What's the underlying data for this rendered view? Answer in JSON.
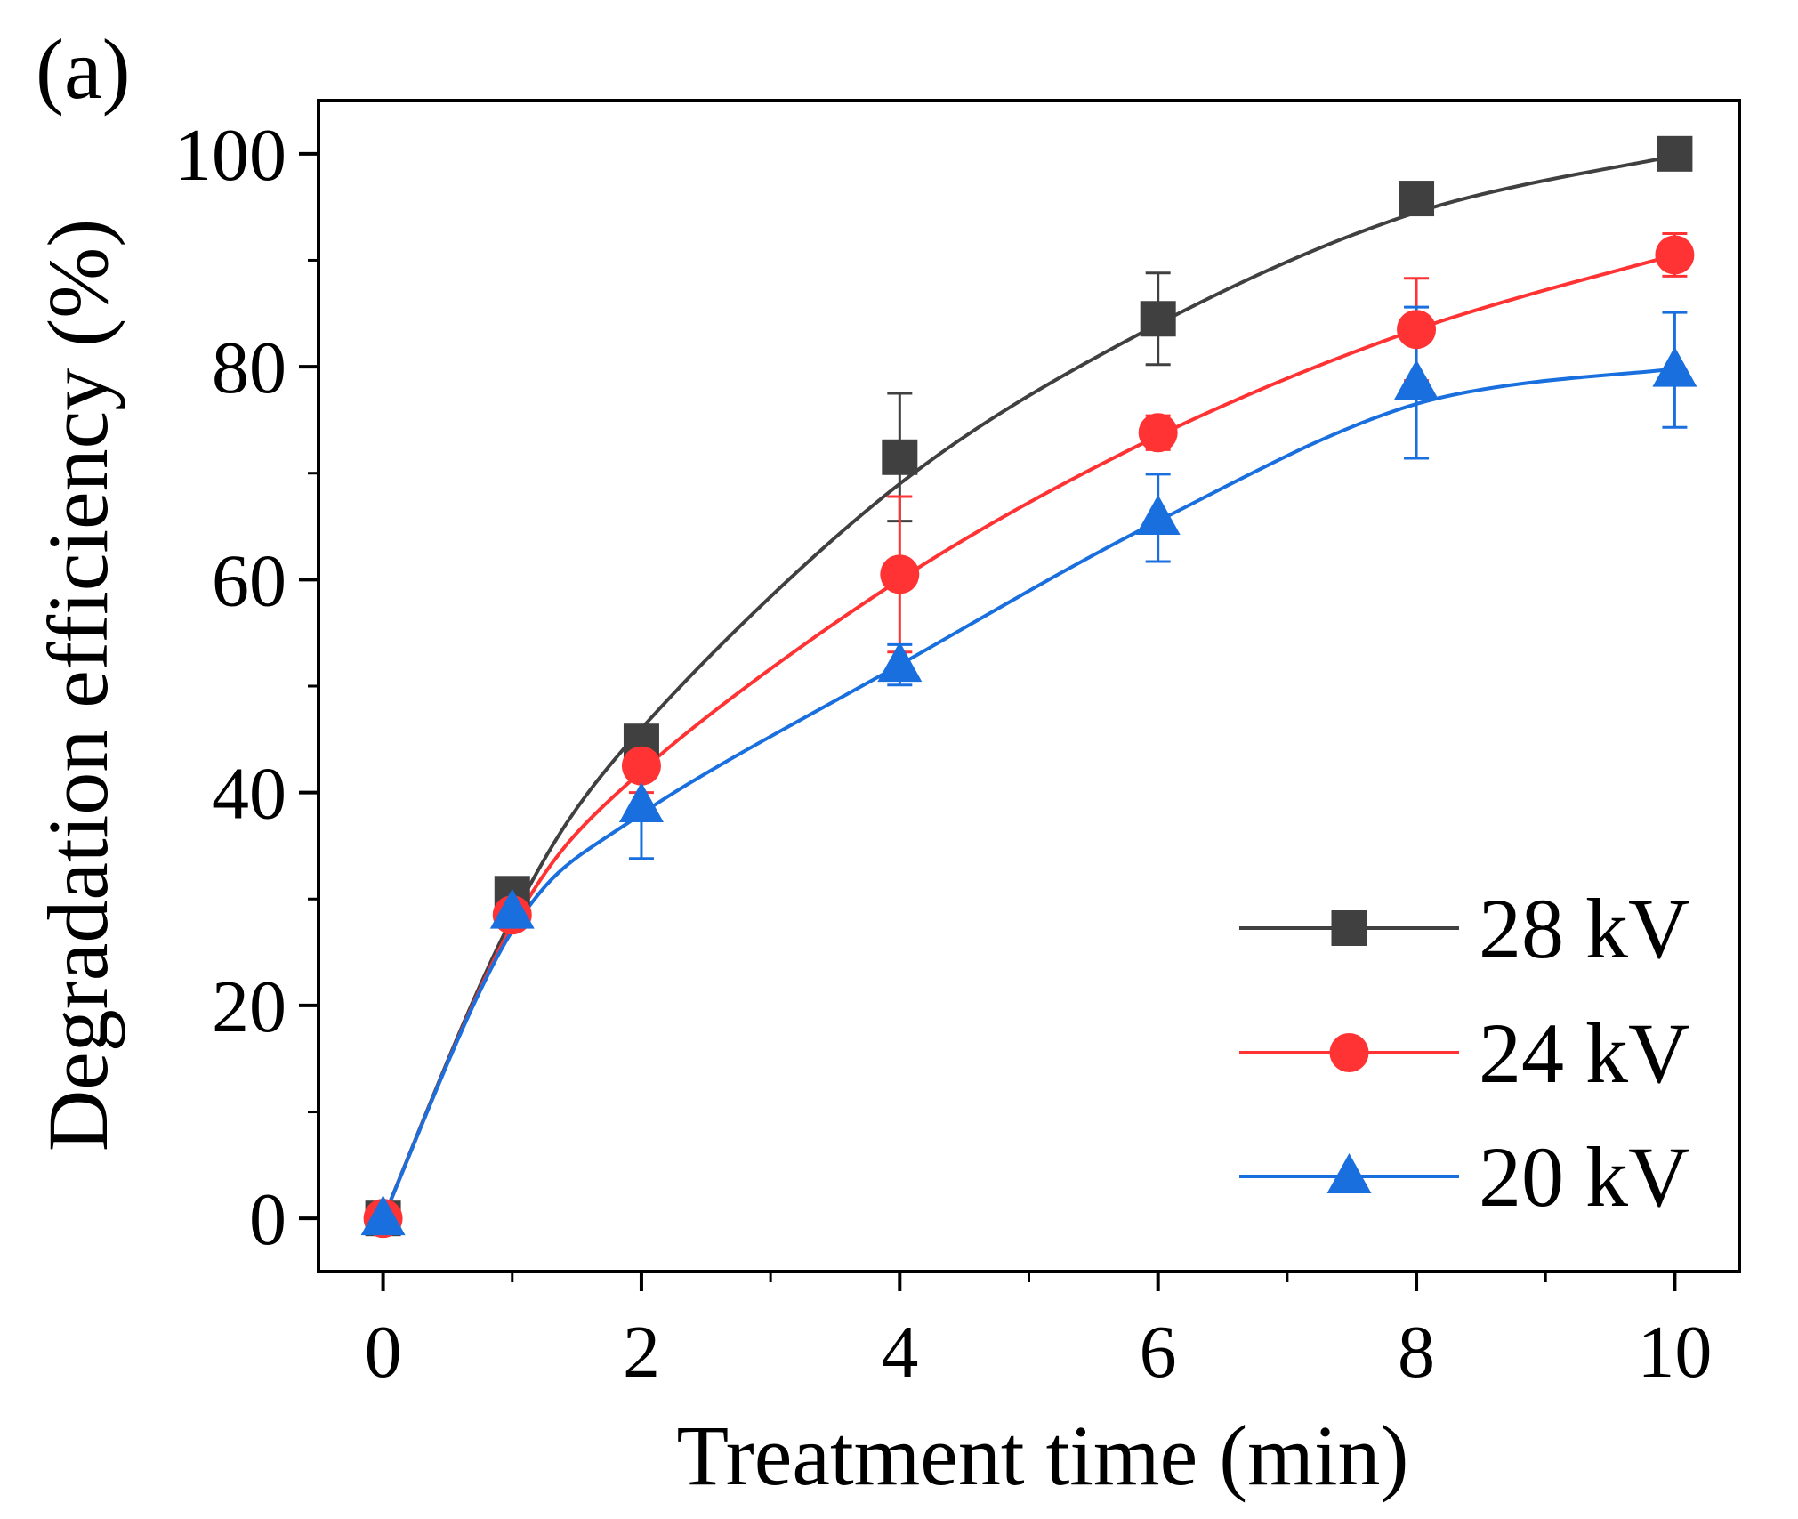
{
  "chart_data": {
    "type": "line",
    "panel_label": "(a)",
    "xlabel": "Treatment time (min)",
    "ylabel": "Degradation efficiency (%)",
    "xlim": [
      -0.5,
      10.5
    ],
    "ylim": [
      -5,
      105
    ],
    "xticks": [
      0,
      2,
      4,
      6,
      8,
      10
    ],
    "xtick_labels": [
      "0",
      "2",
      "4",
      "6",
      "8",
      "10"
    ],
    "xminor": [
      1,
      3,
      5,
      7,
      9
    ],
    "yticks": [
      0,
      20,
      40,
      60,
      80,
      100
    ],
    "ytick_labels": [
      "0",
      "20",
      "40",
      "60",
      "80",
      "100"
    ],
    "yminor": [
      10,
      30,
      50,
      70,
      90
    ],
    "grid": false,
    "legend_position": "bottom-right",
    "x": [
      0,
      1,
      2,
      4,
      6,
      8,
      10
    ],
    "series": [
      {
        "name": "28 kV",
        "marker": "square",
        "color": "#404040",
        "values": [
          0,
          30.5,
          44.8,
          71.5,
          84.5,
          95.8,
          100
        ],
        "errors": [
          0,
          0,
          0,
          6.0,
          4.3,
          0,
          0
        ],
        "fit": [
          [
            0,
            0
          ],
          [
            1,
            28.2
          ],
          [
            2,
            46
          ],
          [
            4,
            69
          ],
          [
            6,
            84
          ],
          [
            8,
            94.5
          ],
          [
            10,
            99.8
          ]
        ]
      },
      {
        "name": "24 kV",
        "marker": "circle",
        "color": "#ff3333",
        "values": [
          0,
          28.5,
          42.5,
          60.5,
          73.8,
          83.5,
          90.5
        ],
        "errors": [
          0,
          0,
          2.5,
          7.3,
          1.6,
          4.8,
          2.0
        ],
        "fit": [
          [
            0,
            0
          ],
          [
            1,
            27.5
          ],
          [
            2,
            42
          ],
          [
            4,
            60
          ],
          [
            6,
            73.5
          ],
          [
            8,
            83.5
          ],
          [
            10,
            90.5
          ]
        ]
      },
      {
        "name": "20 kV",
        "marker": "triangle",
        "color": "#1a6fdf",
        "values": [
          0,
          28.8,
          38.8,
          52.0,
          65.8,
          78.5,
          79.7
        ],
        "errors": [
          0,
          0,
          5.0,
          1.9,
          4.1,
          7.1,
          5.4
        ],
        "fit": [
          [
            0,
            0
          ],
          [
            1,
            27
          ],
          [
            2,
            38
          ],
          [
            4,
            52
          ],
          [
            6,
            65.5
          ],
          [
            8,
            76.5
          ],
          [
            10,
            79.8
          ]
        ]
      }
    ]
  }
}
